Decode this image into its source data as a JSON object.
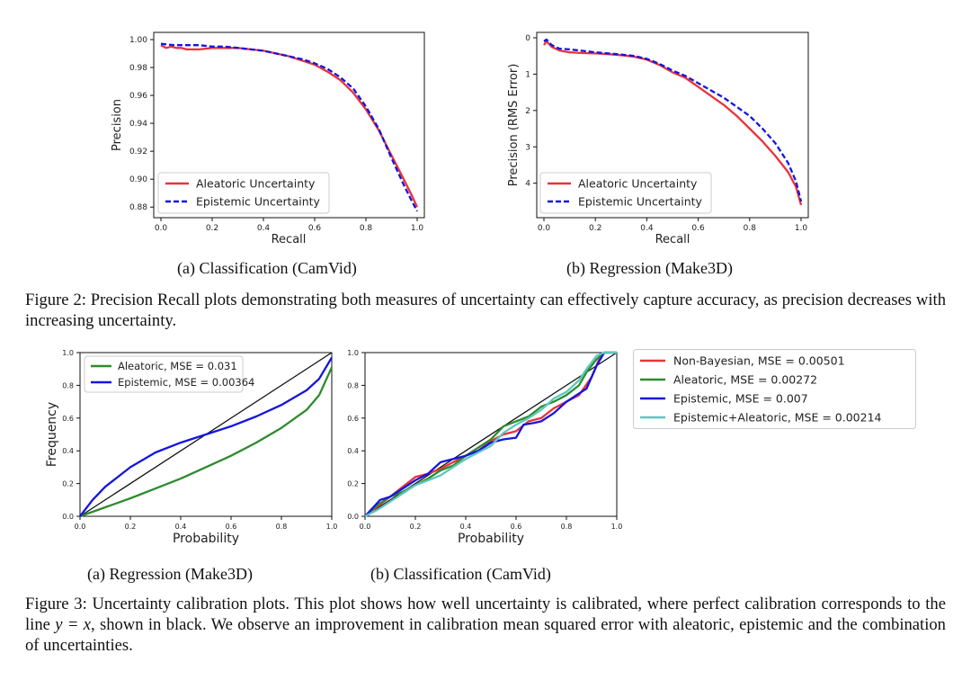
{
  "figure2": {
    "subcaption_a": "(a) Classification (CamVid)",
    "subcaption_b": "(b) Regression (Make3D)",
    "caption": "Figure 2: Precision Recall plots demonstrating both measures of uncertainty can effectively capture accuracy, as precision decreases with increasing uncertainty."
  },
  "figure3": {
    "subcaption_a": "(a) Regression (Make3D)",
    "subcaption_b": "(b) Classification (CamVid)",
    "caption_part1": "Figure 3: Uncertainty calibration plots. This plot shows how well uncertainty is calibrated, where perfect calibration corresponds to the line ",
    "caption_math": "y = x",
    "caption_part2": ", shown in black. We observe an improvement in calibration mean squared error with aleatoric, epistemic and the combination of uncertainties."
  },
  "colors": {
    "aleatoric_pr": "#e8333a",
    "epistemic_pr": "#1515e0",
    "green": "#2e8b2e",
    "blue": "#1515e0",
    "red": "#e8333a",
    "cyan": "#5cc8c0",
    "diag": "#111111"
  },
  "chart_data": [
    {
      "id": "fig2a",
      "type": "line",
      "title": "",
      "xlabel": "Recall",
      "ylabel": "Precision",
      "xlim": [
        0,
        1
      ],
      "ylim": [
        0.875,
        1.0
      ],
      "xticks": [
        "0.0",
        "0.2",
        "0.4",
        "0.6",
        "0.8",
        "1.0"
      ],
      "xtick_values": [
        0,
        0.2,
        0.4,
        0.6,
        0.8,
        1.0
      ],
      "yticks": [
        "0.88",
        "0.90",
        "0.92",
        "0.94",
        "0.96",
        "0.98",
        "1.00"
      ],
      "ytick_values": [
        0.88,
        0.9,
        0.92,
        0.94,
        0.96,
        0.98,
        1.0
      ],
      "legend_position": "lower-left",
      "series": [
        {
          "name": "Aleatoric Uncertainty",
          "style": "solid",
          "color": "#e8333a",
          "x": [
            0,
            0.02,
            0.04,
            0.06,
            0.08,
            0.1,
            0.12,
            0.15,
            0.2,
            0.25,
            0.3,
            0.35,
            0.4,
            0.45,
            0.5,
            0.55,
            0.6,
            0.65,
            0.7,
            0.75,
            0.8,
            0.85,
            0.9,
            0.95,
            0.98,
            1.0
          ],
          "y": [
            0.996,
            0.994,
            0.995,
            0.994,
            0.994,
            0.993,
            0.993,
            0.993,
            0.994,
            0.994,
            0.994,
            0.993,
            0.992,
            0.99,
            0.988,
            0.985,
            0.982,
            0.977,
            0.971,
            0.962,
            0.95,
            0.935,
            0.917,
            0.899,
            0.888,
            0.88
          ]
        },
        {
          "name": "Epistemic Uncertainty",
          "style": "dashed",
          "color": "#1515e0",
          "x": [
            0,
            0.05,
            0.1,
            0.15,
            0.2,
            0.25,
            0.3,
            0.35,
            0.4,
            0.45,
            0.5,
            0.55,
            0.6,
            0.65,
            0.7,
            0.75,
            0.8,
            0.85,
            0.9,
            0.95,
            0.98,
            1.0
          ],
          "y": [
            0.997,
            0.996,
            0.996,
            0.996,
            0.995,
            0.995,
            0.994,
            0.993,
            0.992,
            0.99,
            0.988,
            0.986,
            0.983,
            0.979,
            0.973,
            0.965,
            0.952,
            0.936,
            0.915,
            0.895,
            0.884,
            0.877
          ]
        }
      ]
    },
    {
      "id": "fig2b",
      "type": "line",
      "title": "",
      "xlabel": "Recall",
      "ylabel": "Precision (RMS Error)",
      "xlim": [
        0,
        1
      ],
      "ylim": [
        0,
        4.8
      ],
      "y_inverted": true,
      "xticks": [
        "0.0",
        "0.2",
        "0.4",
        "0.6",
        "0.8",
        "1.0"
      ],
      "xtick_values": [
        0,
        0.2,
        0.4,
        0.6,
        0.8,
        1.0
      ],
      "yticks": [
        "0",
        "1",
        "2",
        "3",
        "4"
      ],
      "ytick_values": [
        0,
        1,
        2,
        3,
        4
      ],
      "legend_position": "lower-left",
      "series": [
        {
          "name": "Aleatoric Uncertainty",
          "style": "solid",
          "color": "#e8333a",
          "x": [
            0,
            0.01,
            0.03,
            0.06,
            0.1,
            0.15,
            0.2,
            0.25,
            0.3,
            0.35,
            0.4,
            0.45,
            0.5,
            0.55,
            0.6,
            0.65,
            0.7,
            0.75,
            0.8,
            0.85,
            0.9,
            0.95,
            0.98,
            1.0
          ],
          "y": [
            0.2,
            0.1,
            0.25,
            0.35,
            0.4,
            0.42,
            0.43,
            0.45,
            0.48,
            0.52,
            0.6,
            0.75,
            0.95,
            1.1,
            1.35,
            1.6,
            1.85,
            2.15,
            2.5,
            2.85,
            3.25,
            3.7,
            4.1,
            4.6
          ]
        },
        {
          "name": "Epistemic Uncertainty",
          "style": "dashed",
          "color": "#1515e0",
          "x": [
            0,
            0.01,
            0.03,
            0.06,
            0.1,
            0.15,
            0.2,
            0.25,
            0.3,
            0.35,
            0.4,
            0.45,
            0.5,
            0.55,
            0.6,
            0.65,
            0.7,
            0.75,
            0.8,
            0.85,
            0.9,
            0.95,
            0.98,
            1.0
          ],
          "y": [
            0.1,
            0.05,
            0.2,
            0.3,
            0.32,
            0.36,
            0.4,
            0.43,
            0.46,
            0.5,
            0.58,
            0.72,
            0.9,
            1.05,
            1.25,
            1.45,
            1.65,
            1.9,
            2.15,
            2.5,
            2.9,
            3.45,
            3.95,
            4.5
          ]
        }
      ]
    },
    {
      "id": "fig3a",
      "type": "line",
      "title": "",
      "xlabel": "Probability",
      "ylabel": "Frequency",
      "xlim": [
        0,
        1
      ],
      "ylim": [
        0,
        1
      ],
      "xticks": [
        "0.0",
        "0.2",
        "0.4",
        "0.6",
        "0.8",
        "1.0"
      ],
      "xtick_values": [
        0,
        0.2,
        0.4,
        0.6,
        0.8,
        1.0
      ],
      "yticks": [
        "0.0",
        "0.2",
        "0.4",
        "0.6",
        "0.8",
        "1.0"
      ],
      "ytick_values": [
        0,
        0.2,
        0.4,
        0.6,
        0.8,
        1.0
      ],
      "legend_position": "top-left",
      "diagonal": true,
      "series": [
        {
          "name": "Aleatoric, MSE = 0.031",
          "style": "solid",
          "color": "#2e8b2e",
          "x": [
            0,
            0.1,
            0.2,
            0.3,
            0.4,
            0.5,
            0.6,
            0.7,
            0.8,
            0.9,
            0.95,
            1.0
          ],
          "y": [
            0,
            0.055,
            0.11,
            0.17,
            0.23,
            0.3,
            0.37,
            0.45,
            0.54,
            0.65,
            0.74,
            0.91
          ]
        },
        {
          "name": "Epistemic, MSE = 0.00364",
          "style": "solid",
          "color": "#1515e0",
          "x": [
            0,
            0.05,
            0.1,
            0.2,
            0.3,
            0.4,
            0.5,
            0.6,
            0.7,
            0.8,
            0.9,
            0.95,
            1.0
          ],
          "y": [
            0,
            0.1,
            0.18,
            0.3,
            0.39,
            0.45,
            0.5,
            0.55,
            0.61,
            0.68,
            0.77,
            0.84,
            0.97
          ]
        }
      ]
    },
    {
      "id": "fig3b",
      "type": "line",
      "title": "",
      "xlabel": "Probability",
      "ylabel": "",
      "xlim": [
        0,
        1
      ],
      "ylim": [
        0,
        1
      ],
      "xticks": [
        "0.0",
        "0.2",
        "0.4",
        "0.6",
        "0.8",
        "1.0"
      ],
      "xtick_values": [
        0,
        0.2,
        0.4,
        0.6,
        0.8,
        1.0
      ],
      "yticks": [
        "0.0",
        "0.2",
        "0.4",
        "0.6",
        "0.8",
        "1.0"
      ],
      "ytick_values": [
        0,
        0.2,
        0.4,
        0.6,
        0.8,
        1.0
      ],
      "legend_position": "outside-right",
      "diagonal": true,
      "series": [
        {
          "name": "Non-Bayesian, MSE = 0.00501",
          "style": "solid",
          "color": "#e8333a",
          "x": [
            0.0,
            0.05,
            0.1,
            0.15,
            0.2,
            0.25,
            0.3,
            0.35,
            0.4,
            0.45,
            0.5,
            0.55,
            0.6,
            0.65,
            0.7,
            0.75,
            0.8,
            0.85,
            0.9,
            0.93,
            0.95,
            1.0
          ],
          "y": [
            0.0,
            0.06,
            0.12,
            0.18,
            0.24,
            0.26,
            0.29,
            0.33,
            0.37,
            0.4,
            0.46,
            0.5,
            0.52,
            0.58,
            0.6,
            0.66,
            0.7,
            0.74,
            0.85,
            0.96,
            1.0,
            1.0
          ]
        },
        {
          "name": "Aleatoric, MSE = 0.00272",
          "style": "solid",
          "color": "#2e8b2e",
          "x": [
            0.0,
            0.05,
            0.1,
            0.15,
            0.2,
            0.25,
            0.3,
            0.35,
            0.4,
            0.45,
            0.5,
            0.55,
            0.6,
            0.65,
            0.7,
            0.75,
            0.8,
            0.85,
            0.88,
            0.92,
            0.95,
            1.0
          ],
          "y": [
            0.0,
            0.07,
            0.12,
            0.15,
            0.19,
            0.23,
            0.28,
            0.31,
            0.37,
            0.42,
            0.47,
            0.55,
            0.58,
            0.61,
            0.67,
            0.7,
            0.74,
            0.8,
            0.88,
            0.96,
            1.0,
            1.0
          ]
        },
        {
          "name": "Epistemic, MSE = 0.007",
          "style": "solid",
          "color": "#1515e0",
          "x": [
            0.0,
            0.03,
            0.06,
            0.1,
            0.15,
            0.2,
            0.25,
            0.3,
            0.35,
            0.4,
            0.45,
            0.5,
            0.55,
            0.6,
            0.63,
            0.67,
            0.7,
            0.75,
            0.8,
            0.85,
            0.88,
            0.92,
            0.95,
            1.0
          ],
          "y": [
            0.0,
            0.05,
            0.1,
            0.12,
            0.17,
            0.22,
            0.26,
            0.33,
            0.35,
            0.37,
            0.4,
            0.45,
            0.47,
            0.48,
            0.56,
            0.57,
            0.58,
            0.63,
            0.7,
            0.75,
            0.78,
            0.92,
            1.0,
            1.0
          ]
        },
        {
          "name": "Epistemic+Aleatoric, MSE = 0.00214",
          "style": "solid",
          "color": "#5cc8c0",
          "x": [
            0.0,
            0.05,
            0.1,
            0.15,
            0.2,
            0.25,
            0.3,
            0.35,
            0.4,
            0.45,
            0.5,
            0.55,
            0.6,
            0.65,
            0.7,
            0.75,
            0.8,
            0.85,
            0.88,
            0.92,
            0.95,
            1.0
          ],
          "y": [
            0.0,
            0.04,
            0.09,
            0.14,
            0.19,
            0.22,
            0.25,
            0.3,
            0.35,
            0.39,
            0.43,
            0.51,
            0.56,
            0.6,
            0.65,
            0.72,
            0.76,
            0.83,
            0.9,
            0.98,
            1.0,
            1.0
          ]
        }
      ]
    }
  ]
}
